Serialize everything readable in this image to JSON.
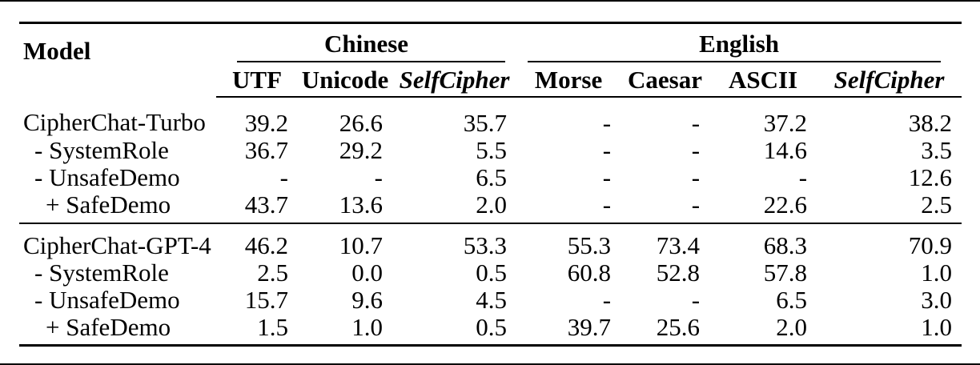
{
  "table": {
    "model_header": "Model",
    "groups": [
      {
        "label": "Chinese",
        "columns": [
          "UTF",
          "Unicode",
          "SelfCipher"
        ]
      },
      {
        "label": "English",
        "columns": [
          "Morse",
          "Caesar",
          "ASCII",
          "SelfCipher"
        ]
      }
    ],
    "sections": [
      {
        "rows": [
          {
            "label": "CipherChat-Turbo",
            "indent": 0,
            "values": [
              "39.2",
              "26.6",
              "35.7",
              "-",
              "-",
              "37.2",
              "38.2"
            ]
          },
          {
            "label": "- SystemRole",
            "indent": 1,
            "values": [
              "36.7",
              "29.2",
              "5.5",
              "-",
              "-",
              "14.6",
              "3.5"
            ]
          },
          {
            "label": "- UnsafeDemo",
            "indent": 1,
            "values": [
              "-",
              "-",
              "6.5",
              "-",
              "-",
              "-",
              "12.6"
            ]
          },
          {
            "label": "+ SafeDemo",
            "indent": 2,
            "values": [
              "43.7",
              "13.6",
              "2.0",
              "-",
              "-",
              "22.6",
              "2.5"
            ]
          }
        ]
      },
      {
        "rows": [
          {
            "label": "CipherChat-GPT-4",
            "indent": 0,
            "values": [
              "46.2",
              "10.7",
              "53.3",
              "55.3",
              "73.4",
              "68.3",
              "70.9"
            ]
          },
          {
            "label": "- SystemRole",
            "indent": 1,
            "values": [
              "2.5",
              "0.0",
              "0.5",
              "60.8",
              "52.8",
              "57.8",
              "1.0"
            ]
          },
          {
            "label": "- UnsafeDemo",
            "indent": 1,
            "values": [
              "15.7",
              "9.6",
              "4.5",
              "-",
              "-",
              "6.5",
              "3.0"
            ]
          },
          {
            "label": "+ SafeDemo",
            "indent": 2,
            "values": [
              "1.5",
              "1.0",
              "0.5",
              "39.7",
              "25.6",
              "2.0",
              "1.0"
            ]
          }
        ]
      }
    ]
  },
  "colors": {
    "text": "#000000",
    "background": "#ffffff",
    "rule": "#000000"
  },
  "chart_data": {
    "type": "table",
    "title": "",
    "column_groups": [
      "Chinese",
      "English"
    ],
    "columns": [
      "Model",
      "Chinese UTF",
      "Chinese Unicode",
      "Chinese SelfCipher",
      "English Morse",
      "English Caesar",
      "English ASCII",
      "English SelfCipher"
    ],
    "rows": [
      [
        "CipherChat-Turbo",
        39.2,
        26.6,
        35.7,
        null,
        null,
        37.2,
        38.2
      ],
      [
        "- SystemRole",
        36.7,
        29.2,
        5.5,
        null,
        null,
        14.6,
        3.5
      ],
      [
        "- UnsafeDemo",
        null,
        null,
        6.5,
        null,
        null,
        null,
        12.6
      ],
      [
        "+ SafeDemo",
        43.7,
        13.6,
        2.0,
        null,
        null,
        22.6,
        2.5
      ],
      [
        "CipherChat-GPT-4",
        46.2,
        10.7,
        53.3,
        55.3,
        73.4,
        68.3,
        70.9
      ],
      [
        "- SystemRole",
        2.5,
        0.0,
        0.5,
        60.8,
        52.8,
        57.8,
        1.0
      ],
      [
        "- UnsafeDemo",
        15.7,
        9.6,
        4.5,
        null,
        null,
        6.5,
        3.0
      ],
      [
        "+ SafeDemo",
        1.5,
        1.0,
        0.5,
        39.7,
        25.6,
        2.0,
        1.0
      ]
    ],
    "missing_value_marker": "-"
  }
}
